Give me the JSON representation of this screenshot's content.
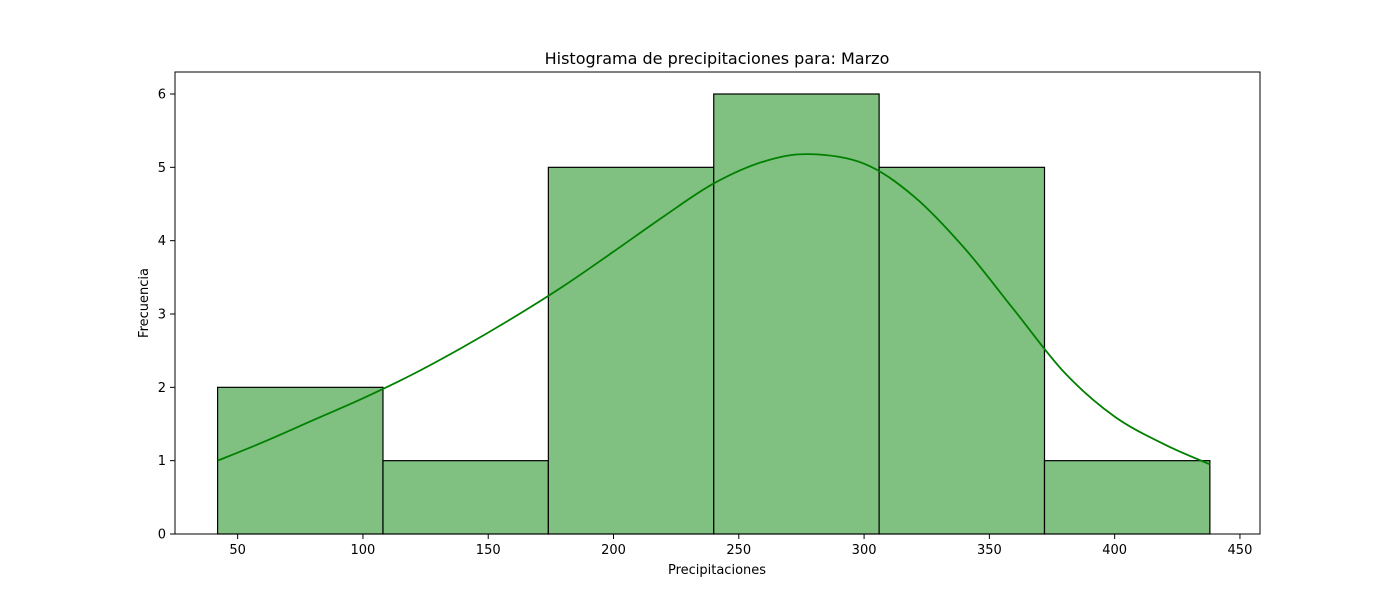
{
  "chart_data": {
    "type": "bar",
    "title": "Histograma de precipitaciones para: Marzo",
    "xlabel": "Precipitaciones",
    "ylabel": "Frecuencia",
    "bins": [
      {
        "x0": 42,
        "x1": 108,
        "count": 2
      },
      {
        "x0": 108,
        "x1": 174,
        "count": 1
      },
      {
        "x0": 174,
        "x1": 240,
        "count": 5
      },
      {
        "x0": 240,
        "x1": 306,
        "count": 6
      },
      {
        "x0": 306,
        "x1": 372,
        "count": 5
      },
      {
        "x0": 372,
        "x1": 438,
        "count": 1
      }
    ],
    "xlim": [
      25,
      458
    ],
    "ylim": [
      0,
      6.3
    ],
    "xticks": [
      50,
      100,
      150,
      200,
      250,
      300,
      350,
      400,
      450
    ],
    "yticks": [
      0,
      1,
      2,
      3,
      4,
      5,
      6
    ],
    "kde": {
      "x": [
        42,
        60,
        80,
        100,
        120,
        140,
        160,
        180,
        200,
        220,
        240,
        260,
        278,
        300,
        320,
        340,
        360,
        380,
        400,
        420,
        438
      ],
      "y": [
        1.0,
        1.25,
        1.55,
        1.85,
        2.18,
        2.55,
        2.95,
        3.38,
        3.85,
        4.33,
        4.78,
        5.08,
        5.18,
        5.05,
        4.6,
        3.9,
        3.05,
        2.2,
        1.6,
        1.22,
        0.95
      ]
    },
    "grid": false,
    "colors": {
      "bar_fill": "#80c080",
      "bar_edge": "#000000",
      "kde_line": "#008000"
    }
  }
}
